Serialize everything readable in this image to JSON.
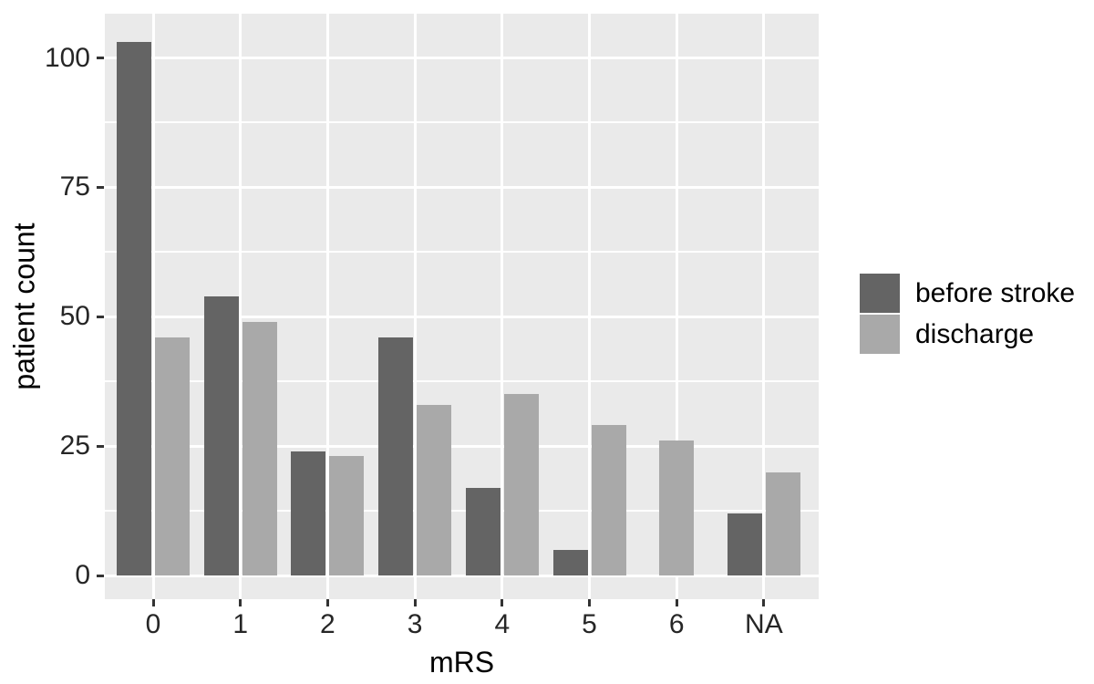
{
  "chart_data": {
    "type": "bar",
    "title": "",
    "xlabel": "mRS",
    "ylabel": "patient count",
    "categories": [
      "0",
      "1",
      "2",
      "3",
      "4",
      "5",
      "6",
      "NA"
    ],
    "series": [
      {
        "name": "before stroke",
        "color": "#646464",
        "values": [
          103,
          54,
          24,
          46,
          17,
          5,
          null,
          12
        ]
      },
      {
        "name": "discharge",
        "color": "#a9a9a9",
        "values": [
          46,
          49,
          23,
          33,
          35,
          29,
          26,
          20
        ]
      }
    ],
    "y_axis": {
      "ticks": [
        0,
        25,
        50,
        75,
        100
      ],
      "minor_ticks": [
        12.5,
        37.5,
        62.5,
        87.5
      ],
      "ylim": [
        -5,
        108.6
      ]
    },
    "x_axis": {
      "ticks": [
        "0",
        "1",
        "2",
        "3",
        "4",
        "5",
        "6",
        "NA"
      ]
    },
    "legend": {
      "position": "right",
      "entries": [
        "before stroke",
        "discharge"
      ]
    },
    "grid": "major-and-minor-horizontal, major-vertical",
    "colors": {
      "panel_bg": "#eaeaea",
      "grid": "#ffffff",
      "tick_mark": "#333333",
      "axis_text": "#262626",
      "axis_title": "#000000"
    }
  }
}
